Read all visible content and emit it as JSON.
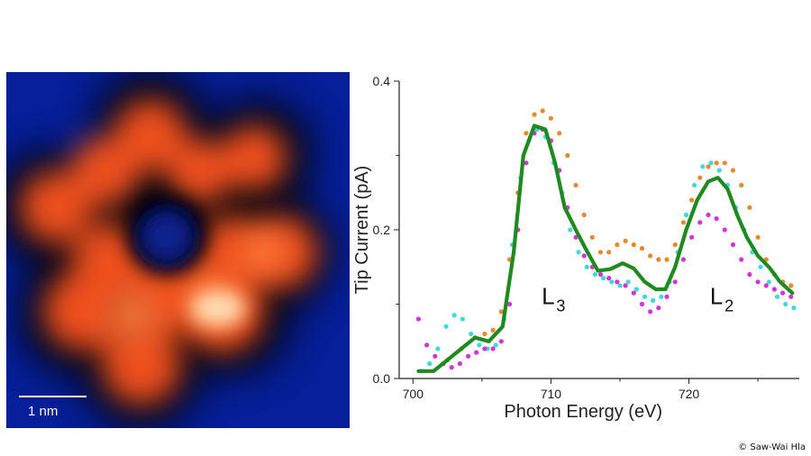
{
  "stm_image": {
    "scale_bar_label": "1 nm",
    "colors": {
      "background": "#061f9a",
      "molecule": "#f05a1e",
      "highlight": "#ffe2b8"
    }
  },
  "chart_data": {
    "type": "scatter",
    "title": "",
    "xlabel": "Photon Energy (eV)",
    "ylabel": "Tip Current (pA)",
    "xlim": [
      699,
      728
    ],
    "ylim": [
      0.0,
      0.4
    ],
    "x_ticks": [
      700,
      710,
      720
    ],
    "y_ticks": [
      0.0,
      0.2,
      0.4
    ],
    "x_tick_labels": [
      "700",
      "710",
      "720"
    ],
    "y_tick_labels": [
      "0.0",
      "0.2",
      "0.4"
    ],
    "grid": false,
    "annotations": [
      {
        "base": "L",
        "sub": "3",
        "x": 709.8,
        "y": 0.1
      },
      {
        "base": "L",
        "sub": "2",
        "x": 722.0,
        "y": 0.1
      }
    ],
    "series": [
      {
        "kind": "line",
        "color": "#1f8a1f",
        "x": [
          700.4,
          701.5,
          702.5,
          703.5,
          704.5,
          705.5,
          706.5,
          707.3,
          708.0,
          708.8,
          709.6,
          710.3,
          711.0,
          711.8,
          712.5,
          713.4,
          714.3,
          715.2,
          716.0,
          716.8,
          717.6,
          718.3,
          719.0,
          719.8,
          720.6,
          721.4,
          722.1,
          722.8,
          723.5,
          724.2,
          725.0,
          725.8,
          726.6,
          727.5
        ],
        "y": [
          0.01,
          0.01,
          0.025,
          0.04,
          0.055,
          0.05,
          0.07,
          0.17,
          0.3,
          0.34,
          0.335,
          0.29,
          0.23,
          0.2,
          0.175,
          0.145,
          0.147,
          0.155,
          0.148,
          0.13,
          0.12,
          0.12,
          0.15,
          0.2,
          0.24,
          0.265,
          0.27,
          0.255,
          0.22,
          0.19,
          0.165,
          0.15,
          0.13,
          0.115
        ]
      },
      {
        "kind": "points",
        "color": "#e8892a",
        "x": [
          702.5,
          703.5,
          704.5,
          705.2,
          705.8,
          706.4,
          707.0,
          707.6,
          708.2,
          708.8,
          709.4,
          710.0,
          710.6,
          711.2,
          711.8,
          712.4,
          713.0,
          713.6,
          714.2,
          714.8,
          715.4,
          716.0,
          716.6,
          717.2,
          717.8,
          718.4,
          719.0,
          719.6,
          720.2,
          720.8,
          721.4,
          722.0,
          722.6,
          723.2,
          723.8,
          724.4,
          725.0,
          725.6,
          726.2,
          726.8,
          727.4
        ],
        "y": [
          0.025,
          0.04,
          0.055,
          0.06,
          0.065,
          0.09,
          0.16,
          0.25,
          0.33,
          0.355,
          0.36,
          0.35,
          0.33,
          0.3,
          0.26,
          0.22,
          0.19,
          0.17,
          0.17,
          0.18,
          0.185,
          0.18,
          0.175,
          0.165,
          0.16,
          0.16,
          0.18,
          0.21,
          0.24,
          0.27,
          0.285,
          0.29,
          0.29,
          0.28,
          0.26,
          0.23,
          0.19,
          0.16,
          0.14,
          0.13,
          0.125
        ]
      },
      {
        "kind": "points",
        "color": "#3fd9d9",
        "x": [
          700.6,
          701.2,
          701.8,
          702.4,
          703.0,
          703.6,
          704.2,
          704.8,
          705.4,
          706.0,
          706.6,
          707.2,
          707.8,
          708.4,
          709.0,
          709.6,
          710.2,
          710.8,
          711.4,
          712.0,
          712.6,
          713.2,
          713.8,
          714.4,
          715.0,
          715.6,
          716.2,
          716.8,
          717.4,
          718.0,
          718.6,
          719.2,
          719.8,
          720.4,
          721.0,
          721.6,
          722.2,
          722.8,
          723.4,
          724.0,
          724.6,
          725.2,
          725.8,
          726.4,
          727.0,
          727.6
        ],
        "y": [
          0.01,
          0.02,
          0.04,
          0.07,
          0.085,
          0.08,
          0.06,
          0.045,
          0.04,
          0.045,
          0.08,
          0.18,
          0.27,
          0.32,
          0.335,
          0.325,
          0.29,
          0.25,
          0.2,
          0.17,
          0.15,
          0.14,
          0.135,
          0.13,
          0.125,
          0.13,
          0.12,
          0.11,
          0.105,
          0.11,
          0.13,
          0.17,
          0.22,
          0.26,
          0.285,
          0.29,
          0.28,
          0.26,
          0.23,
          0.2,
          0.17,
          0.15,
          0.13,
          0.11,
          0.1,
          0.095
        ]
      },
      {
        "kind": "points",
        "color": "#d633d6",
        "x": [
          700.4,
          701.0,
          701.6,
          702.2,
          702.8,
          703.4,
          704.0,
          704.6,
          705.2,
          705.8,
          706.4,
          707.0,
          707.6,
          708.2,
          708.8,
          709.4,
          710.0,
          710.6,
          711.2,
          711.8,
          712.4,
          713.0,
          713.6,
          714.2,
          714.8,
          715.4,
          716.0,
          716.6,
          717.2,
          717.8,
          718.4,
          719.0,
          719.6,
          720.2,
          720.8,
          721.4,
          722.0,
          722.6,
          723.2,
          723.8,
          724.4,
          725.0,
          725.6,
          726.2,
          726.8,
          727.4
        ],
        "y": [
          0.08,
          0.045,
          0.03,
          0.02,
          0.015,
          0.02,
          0.03,
          0.035,
          0.04,
          0.04,
          0.05,
          0.1,
          0.2,
          0.29,
          0.33,
          0.335,
          0.32,
          0.28,
          0.23,
          0.19,
          0.165,
          0.15,
          0.14,
          0.135,
          0.13,
          0.125,
          0.115,
          0.1,
          0.09,
          0.095,
          0.11,
          0.13,
          0.16,
          0.19,
          0.21,
          0.22,
          0.215,
          0.2,
          0.18,
          0.16,
          0.14,
          0.13,
          0.125,
          0.12,
          0.115,
          0.11
        ]
      }
    ]
  },
  "credit": "© Saw-Wai Hla"
}
